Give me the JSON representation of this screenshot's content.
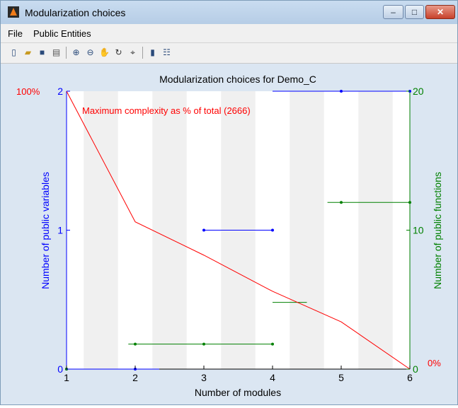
{
  "window": {
    "title": "Modularization choices",
    "controls": {
      "minimize": "–",
      "maximize": "□",
      "close": "✕"
    }
  },
  "menu": {
    "items": [
      "File",
      "Public Entities"
    ]
  },
  "toolbar": {
    "buttons": [
      "new-icon",
      "open-icon",
      "save-icon",
      "print-icon",
      "zoom-in-icon",
      "zoom-out-icon",
      "pan-icon",
      "rotate-icon",
      "data-cursor-icon",
      "colorbar-icon",
      "legend-icon"
    ]
  },
  "colors": {
    "left_axis": "#0000ff",
    "right_axis": "#008000",
    "complexity": "#ff0000",
    "stripe": "#f0f0f0"
  },
  "chart_data": {
    "type": "line",
    "title": "Modularization choices for Demo_C",
    "xlabel": "Number of modules",
    "ylabel_left": "Number of public variables",
    "ylabel_right": "Number of public functions",
    "xlim": [
      1,
      6
    ],
    "ylim_left": [
      0,
      2
    ],
    "ylim_right": [
      0,
      20
    ],
    "x_ticks": [
      "1",
      "2",
      "3",
      "4",
      "5",
      "6"
    ],
    "y_left_ticks": [
      "0",
      "1",
      "2"
    ],
    "y_right_ticks": [
      "0",
      "10",
      "20"
    ],
    "complexity_top_label": "100%",
    "complexity_bottom_label": "0%",
    "annotation": "Maximum complexity as % of total (2666)",
    "stripe_bands": [
      [
        1.25,
        1.75
      ],
      [
        2.25,
        2.75
      ],
      [
        3.25,
        3.75
      ],
      [
        4.25,
        4.75
      ],
      [
        5.25,
        5.75
      ]
    ],
    "series": [
      {
        "name": "Number of public variables",
        "axis": "left",
        "segments": [
          {
            "x": [
              1,
              2.35
            ],
            "y": 0,
            "markers": [
              1,
              2
            ]
          },
          {
            "x": [
              3,
              4
            ],
            "y": 1,
            "markers": [
              3,
              4
            ]
          },
          {
            "x": [
              4,
              6
            ],
            "y": 2,
            "markers": [
              5,
              6
            ]
          }
        ]
      },
      {
        "name": "Number of public functions",
        "axis": "right",
        "segments": [
          {
            "x": [
              1.9,
              4
            ],
            "y": 1.8,
            "markers": [
              2,
              3,
              4
            ]
          },
          {
            "x": [
              4,
              4.5
            ],
            "y": 4.8,
            "markers": []
          },
          {
            "x": [
              4.8,
              6
            ],
            "y": 12,
            "markers": [
              5,
              6
            ]
          }
        ],
        "extra_markers": [
          {
            "x": 1,
            "y": 0
          }
        ]
      },
      {
        "name": "Maximum complexity as % of total (2666)",
        "axis": "percent",
        "x": [
          1,
          2,
          3,
          4,
          5,
          6
        ],
        "y": [
          100,
          53,
          41,
          28,
          17,
          0
        ]
      }
    ]
  }
}
